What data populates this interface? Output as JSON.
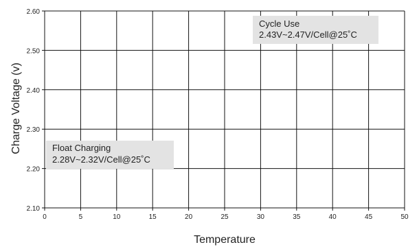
{
  "chart_data": {
    "type": "line",
    "title": "",
    "xlabel": "Temperature",
    "ylabel": "Charge Voltage  (v)",
    "xlim": [
      0,
      50
    ],
    "ylim": [
      2.1,
      2.6
    ],
    "x_ticks": [
      "0",
      "5",
      "10",
      "15",
      "20",
      "25",
      "30",
      "35",
      "40",
      "45",
      "50"
    ],
    "y_ticks": [
      "2.10",
      "2.20",
      "2.30",
      "2.40",
      "2.50",
      "2.60"
    ],
    "grid": true,
    "series": [],
    "annotations": [
      {
        "name": "cycle-use",
        "title": "Cycle Use",
        "text": "2.43V~2.47V/Cell@25˚C"
      },
      {
        "name": "float-charging",
        "title": "Float Charging",
        "text": "2.28V~2.32V/Cell@25˚C"
      }
    ]
  },
  "colors": {
    "grid": "#111111",
    "annotation_box": "#e3e3e3",
    "text": "#222222"
  }
}
